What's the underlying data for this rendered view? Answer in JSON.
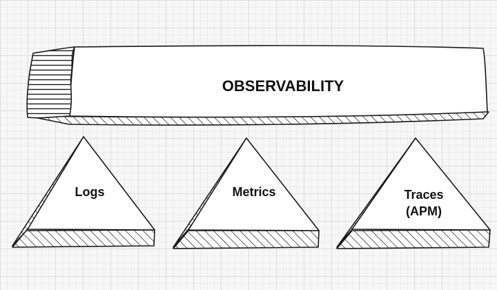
{
  "beam": {
    "title": "OBSERVABILITY"
  },
  "pillars": [
    {
      "lines": [
        "Logs"
      ]
    },
    {
      "lines": [
        "Metrics"
      ]
    },
    {
      "lines": [
        "Traces",
        "(APM)"
      ]
    }
  ]
}
